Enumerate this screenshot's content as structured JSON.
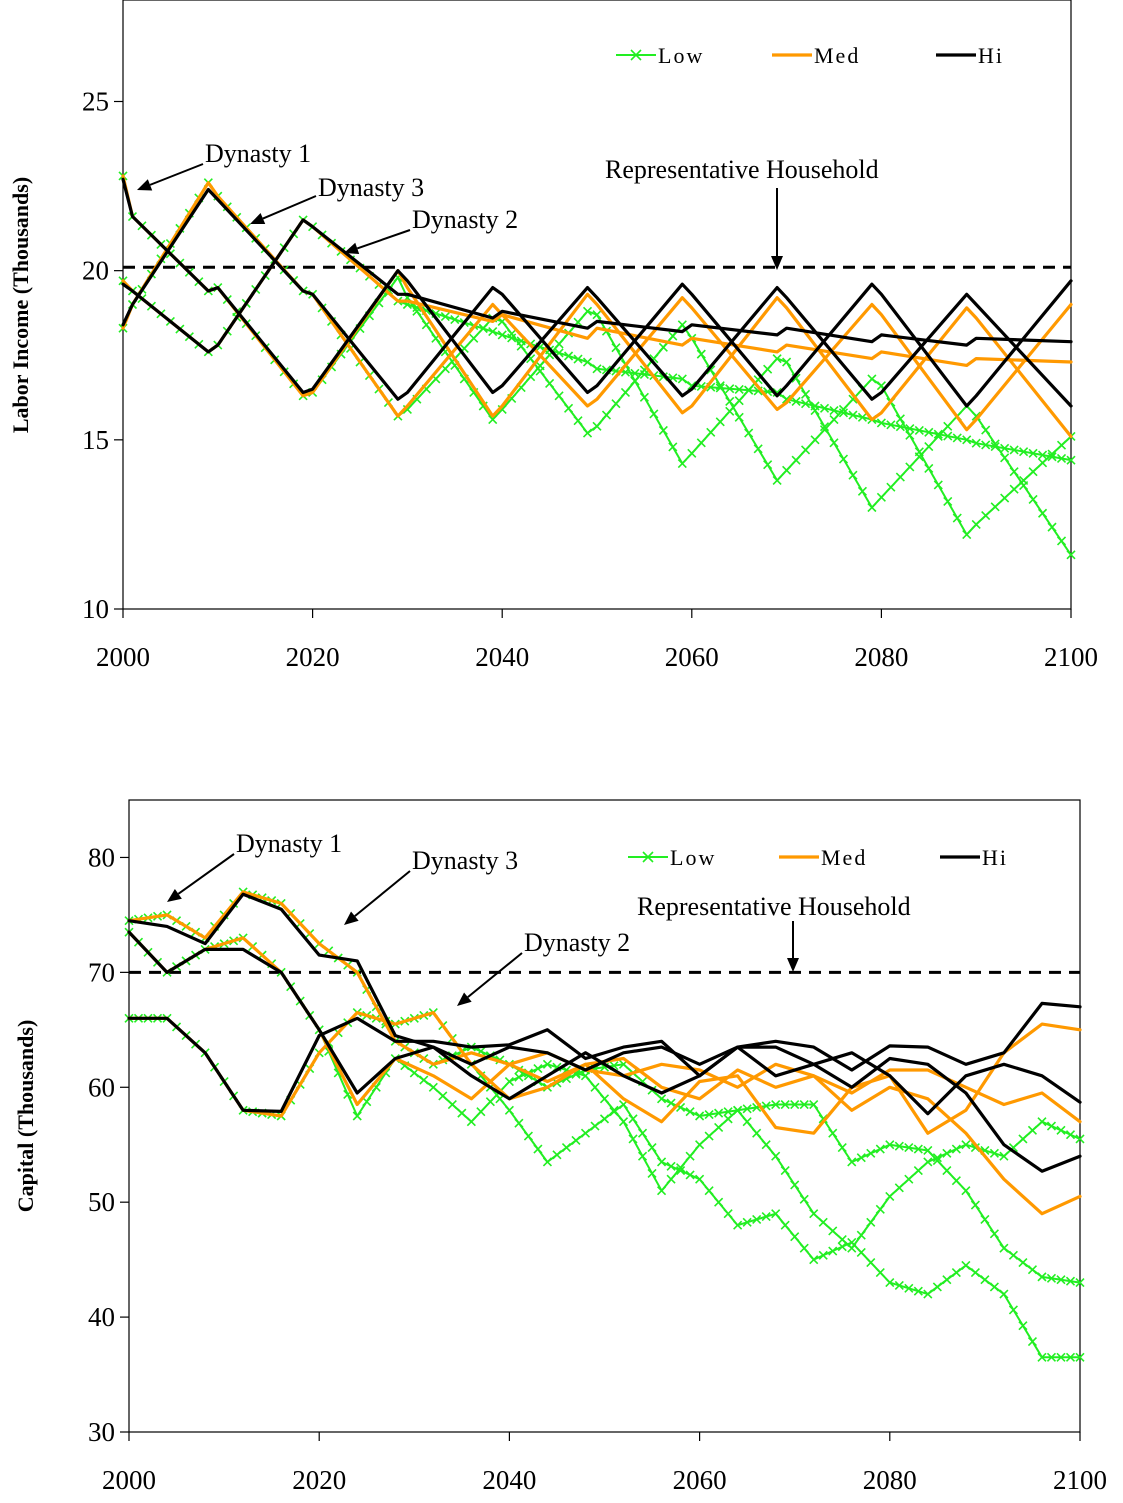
{
  "chart_data": [
    {
      "type": "line",
      "ylabel": "Labor Income (Thousands)",
      "xlabel": "",
      "xlim": [
        2000,
        2100
      ],
      "ylim": [
        10,
        28
      ],
      "xticks": [
        2000,
        2020,
        2040,
        2060,
        2080,
        2100
      ],
      "yticks": [
        10,
        15,
        20,
        25
      ],
      "legend": {
        "placement": "top-right",
        "entries": [
          "Low",
          "Med",
          "Hi"
        ]
      },
      "colors": {
        "Low": "#22ee22",
        "Med": "#ff9900",
        "Hi": "#000000",
        "reference": "#000000"
      },
      "reference_line": {
        "label": "Representative Household",
        "y": 20.1
      },
      "annotations": [
        {
          "text": "Dynasty 1",
          "x": 2002,
          "y": 22.5
        },
        {
          "text": "Dynasty 3",
          "x": 2013,
          "y": 21.2
        },
        {
          "text": "Dynasty 2",
          "x": 2023,
          "y": 20.5
        },
        {
          "text": "Representative Household",
          "x": 2069,
          "y": 20.2
        }
      ],
      "series": [
        {
          "name": "Low",
          "dynasty": 1,
          "x": [
            2000,
            2001,
            2009,
            2010,
            2019,
            2020,
            2029,
            2030,
            2039,
            2040,
            2049,
            2050,
            2059,
            2060,
            2069,
            2070,
            2079,
            2080,
            2089,
            2090,
            2100
          ],
          "values": [
            22.8,
            21.6,
            19.4,
            19.5,
            16.3,
            16.4,
            19.8,
            19.2,
            15.6,
            15.9,
            18.8,
            18.7,
            14.3,
            14.6,
            17.4,
            17.3,
            13.0,
            13.3,
            16.0,
            15.7,
            11.6
          ]
        },
        {
          "name": "Low",
          "dynasty": 2,
          "x": [
            2000,
            2001,
            2009,
            2010,
            2019,
            2020,
            2029,
            2030,
            2039,
            2040,
            2049,
            2050,
            2059,
            2060,
            2069,
            2070,
            2079,
            2080,
            2089,
            2090,
            2100
          ],
          "values": [
            18.3,
            19.0,
            22.6,
            22.2,
            19.4,
            19.3,
            15.7,
            15.9,
            18.6,
            18.5,
            15.2,
            15.4,
            18.4,
            18.0,
            13.8,
            14.1,
            16.8,
            16.6,
            12.2,
            12.5,
            15.1
          ]
        },
        {
          "name": "Low",
          "dynasty": 3,
          "x": [
            2000,
            2001,
            2009,
            2010,
            2019,
            2020,
            2029,
            2030,
            2039,
            2040,
            2049,
            2050,
            2059,
            2060,
            2069,
            2070,
            2079,
            2080,
            2089,
            2090,
            2100
          ],
          "values": [
            19.7,
            19.4,
            17.6,
            17.8,
            21.5,
            21.3,
            19.1,
            19.0,
            18.2,
            18.1,
            17.3,
            17.1,
            16.8,
            16.6,
            16.4,
            16.2,
            15.6,
            15.5,
            15.0,
            14.9,
            14.4
          ]
        },
        {
          "name": "Med",
          "dynasty": 1,
          "x": [
            2000,
            2001,
            2009,
            2010,
            2019,
            2020,
            2029,
            2030,
            2039,
            2040,
            2049,
            2050,
            2059,
            2060,
            2069,
            2070,
            2079,
            2080,
            2089,
            2090,
            2100
          ],
          "values": [
            22.8,
            21.6,
            19.4,
            19.5,
            16.3,
            16.4,
            20.0,
            19.5,
            15.7,
            16.0,
            19.3,
            19.0,
            15.8,
            16.0,
            19.2,
            18.9,
            15.6,
            15.8,
            18.9,
            18.6,
            15.1
          ]
        },
        {
          "name": "Med",
          "dynasty": 2,
          "x": [
            2000,
            2001,
            2009,
            2010,
            2019,
            2020,
            2029,
            2030,
            2039,
            2040,
            2049,
            2050,
            2059,
            2060,
            2069,
            2070,
            2079,
            2080,
            2089,
            2090,
            2100
          ],
          "values": [
            18.3,
            19.0,
            22.6,
            22.2,
            19.4,
            19.3,
            15.7,
            16.0,
            19.0,
            18.7,
            16.0,
            16.2,
            19.2,
            18.9,
            15.9,
            16.1,
            19.0,
            18.7,
            15.3,
            15.6,
            19.0
          ]
        },
        {
          "name": "Med",
          "dynasty": 3,
          "x": [
            2000,
            2001,
            2009,
            2010,
            2019,
            2020,
            2029,
            2030,
            2039,
            2040,
            2049,
            2050,
            2059,
            2060,
            2069,
            2070,
            2079,
            2080,
            2089,
            2090,
            2100
          ],
          "values": [
            19.7,
            19.4,
            17.6,
            17.8,
            21.5,
            21.3,
            19.1,
            19.1,
            18.5,
            18.7,
            18.0,
            18.3,
            17.8,
            18.0,
            17.6,
            17.8,
            17.4,
            17.6,
            17.2,
            17.4,
            17.3
          ]
        },
        {
          "name": "Hi",
          "dynasty": 1,
          "x": [
            2000,
            2001,
            2009,
            2010,
            2019,
            2020,
            2029,
            2030,
            2039,
            2040,
            2049,
            2050,
            2059,
            2060,
            2069,
            2070,
            2079,
            2080,
            2089,
            2090,
            2100
          ],
          "values": [
            22.7,
            21.6,
            19.4,
            19.5,
            16.4,
            16.5,
            20.0,
            19.7,
            16.4,
            16.6,
            19.5,
            19.2,
            16.3,
            16.5,
            19.5,
            19.2,
            16.2,
            16.4,
            19.3,
            19.0,
            16.0
          ]
        },
        {
          "name": "Hi",
          "dynasty": 2,
          "x": [
            2000,
            2001,
            2009,
            2010,
            2019,
            2020,
            2029,
            2030,
            2039,
            2040,
            2049,
            2050,
            2059,
            2060,
            2069,
            2070,
            2079,
            2080,
            2089,
            2090,
            2100
          ],
          "values": [
            18.4,
            19.0,
            22.4,
            22.1,
            19.4,
            19.3,
            16.2,
            16.4,
            19.5,
            19.3,
            16.4,
            16.6,
            19.6,
            19.3,
            16.3,
            16.6,
            19.6,
            19.3,
            16.0,
            16.3,
            19.7
          ]
        },
        {
          "name": "Hi",
          "dynasty": 3,
          "x": [
            2000,
            2001,
            2009,
            2010,
            2019,
            2020,
            2029,
            2030,
            2039,
            2040,
            2049,
            2050,
            2059,
            2060,
            2069,
            2070,
            2079,
            2080,
            2089,
            2090,
            2100
          ],
          "values": [
            19.6,
            19.4,
            17.6,
            17.8,
            21.5,
            21.3,
            19.3,
            19.3,
            18.6,
            18.8,
            18.3,
            18.5,
            18.2,
            18.4,
            18.1,
            18.3,
            17.9,
            18.1,
            17.8,
            18.0,
            17.9
          ]
        }
      ]
    },
    {
      "type": "line",
      "ylabel": "Capital (Thousands)",
      "xlabel": "",
      "xlim": [
        2000,
        2100
      ],
      "ylim": [
        30,
        85
      ],
      "xticks": [
        2000,
        2020,
        2040,
        2060,
        2080,
        2100
      ],
      "yticks": [
        30,
        40,
        50,
        60,
        70,
        80
      ],
      "legend": {
        "placement": "top-right",
        "entries": [
          "Low",
          "Med",
          "Hi"
        ]
      },
      "colors": {
        "Low": "#22ee22",
        "Med": "#ff9900",
        "Hi": "#000000",
        "reference": "#000000"
      },
      "reference_line": {
        "label": "Representative Household",
        "y": 70
      },
      "annotations": [
        {
          "text": "Dynasty 1",
          "x": 2004,
          "y": 75
        },
        {
          "text": "Dynasty 3",
          "x": 2023,
          "y": 73.5
        },
        {
          "text": "Dynasty 2",
          "x": 2035,
          "y": 67.5
        },
        {
          "text": "Representative Household",
          "x": 2070,
          "y": 70.2
        }
      ],
      "series": [
        {
          "name": "Low",
          "dynasty": 1,
          "x": [
            2000,
            2004,
            2008,
            2012,
            2016,
            2020,
            2024,
            2028,
            2032,
            2036,
            2040,
            2044,
            2048,
            2052,
            2056,
            2060,
            2064,
            2068,
            2072,
            2076,
            2080,
            2084,
            2088,
            2092,
            2096,
            2100
          ],
          "values": [
            74.5,
            75,
            73,
            77,
            76,
            72.5,
            70,
            64,
            62,
            63.5,
            62,
            60,
            61.5,
            62,
            59,
            57.5,
            58,
            58.5,
            58.5,
            53.5,
            55,
            54.5,
            51,
            46,
            43.5,
            43
          ]
        },
        {
          "name": "Low",
          "dynasty": 2,
          "x": [
            2000,
            2004,
            2008,
            2012,
            2016,
            2020,
            2024,
            2028,
            2032,
            2036,
            2040,
            2044,
            2048,
            2052,
            2056,
            2060,
            2064,
            2068,
            2072,
            2076,
            2080,
            2084,
            2088,
            2092,
            2096,
            2100
          ],
          "values": [
            66,
            66,
            63,
            58,
            57.5,
            63,
            66.5,
            65.5,
            66.5,
            62,
            58,
            53.5,
            56,
            58.5,
            53.5,
            52,
            48,
            49,
            45,
            46.5,
            43,
            42,
            44.5,
            42,
            36.5,
            36.5
          ]
        },
        {
          "name": "Low",
          "dynasty": 3,
          "x": [
            2000,
            2004,
            2008,
            2012,
            2016,
            2020,
            2024,
            2028,
            2032,
            2036,
            2040,
            2044,
            2048,
            2052,
            2056,
            2060,
            2064,
            2068,
            2072,
            2076,
            2080,
            2084,
            2088,
            2092,
            2096,
            2100
          ],
          "values": [
            73.5,
            70,
            72,
            73,
            70,
            65,
            57.5,
            62.5,
            60,
            57,
            60.5,
            62,
            61,
            57,
            51,
            55,
            58,
            54,
            49,
            46,
            50.5,
            53.5,
            55,
            54,
            57,
            55.5
          ]
        },
        {
          "name": "Med",
          "dynasty": 1,
          "x": [
            2000,
            2004,
            2008,
            2012,
            2016,
            2020,
            2024,
            2028,
            2032,
            2036,
            2040,
            2044,
            2048,
            2052,
            2056,
            2060,
            2064,
            2068,
            2072,
            2076,
            2080,
            2084,
            2088,
            2092,
            2096,
            2100
          ],
          "values": [
            74.5,
            75,
            73,
            77,
            76,
            72.5,
            70,
            64,
            62,
            63,
            62,
            60.5,
            62,
            62.5,
            60,
            59,
            61.5,
            60,
            61,
            58,
            60,
            59,
            56,
            52,
            49,
            50.5
          ]
        },
        {
          "name": "Med",
          "dynasty": 2,
          "x": [
            2000,
            2004,
            2008,
            2012,
            2016,
            2020,
            2024,
            2028,
            2032,
            2036,
            2040,
            2044,
            2048,
            2052,
            2056,
            2060,
            2064,
            2068,
            2072,
            2076,
            2080,
            2084,
            2088,
            2092,
            2096,
            2100
          ],
          "values": [
            66,
            66,
            63,
            58,
            57.5,
            63,
            66.5,
            65.5,
            66.5,
            62,
            59,
            60,
            62,
            59,
            57,
            60.5,
            61,
            56.5,
            56,
            60,
            61,
            56,
            58,
            63,
            65.5,
            65
          ]
        },
        {
          "name": "Med",
          "dynasty": 3,
          "x": [
            2000,
            2004,
            2008,
            2012,
            2016,
            2020,
            2024,
            2028,
            2032,
            2036,
            2040,
            2044,
            2048,
            2052,
            2056,
            2060,
            2064,
            2068,
            2072,
            2076,
            2080,
            2084,
            2088,
            2092,
            2096,
            2100
          ],
          "values": [
            73.5,
            70,
            72,
            73,
            70,
            65,
            58.5,
            62.5,
            61,
            59,
            62,
            63,
            61.5,
            61,
            62,
            61.5,
            60,
            62,
            61,
            59.5,
            61.5,
            61.5,
            60,
            58.5,
            59.5,
            57
          ]
        },
        {
          "name": "Hi",
          "dynasty": 1,
          "x": [
            2000,
            2004,
            2008,
            2012,
            2016,
            2020,
            2024,
            2028,
            2032,
            2036,
            2040,
            2044,
            2048,
            2052,
            2056,
            2060,
            2064,
            2068,
            2072,
            2076,
            2080,
            2084,
            2088,
            2092,
            2096,
            2100
          ],
          "values": [
            74.5,
            74,
            72.5,
            76.8,
            75.5,
            71.5,
            71,
            64.5,
            63.5,
            62,
            63.5,
            63,
            61.5,
            63,
            63.5,
            62,
            63.5,
            63.5,
            62,
            60,
            62.5,
            62,
            59.5,
            55,
            52.7,
            54
          ]
        },
        {
          "name": "Hi",
          "dynasty": 2,
          "x": [
            2000,
            2004,
            2008,
            2012,
            2016,
            2020,
            2024,
            2028,
            2032,
            2036,
            2040,
            2044,
            2048,
            2052,
            2056,
            2060,
            2064,
            2068,
            2072,
            2076,
            2080,
            2084,
            2088,
            2092,
            2096,
            2100
          ],
          "values": [
            66,
            66,
            63,
            58,
            57.9,
            64.5,
            66,
            64,
            64,
            63.5,
            63.7,
            65,
            62.5,
            63.5,
            64,
            61,
            63.5,
            64,
            63.5,
            61.5,
            63.6,
            63.5,
            62,
            63,
            67.3,
            67
          ]
        },
        {
          "name": "Hi",
          "dynasty": 3,
          "x": [
            2000,
            2004,
            2008,
            2012,
            2016,
            2020,
            2024,
            2028,
            2032,
            2036,
            2040,
            2044,
            2048,
            2052,
            2056,
            2060,
            2064,
            2068,
            2072,
            2076,
            2080,
            2084,
            2088,
            2092,
            2096,
            2100
          ],
          "values": [
            73.5,
            70,
            72,
            72,
            70,
            65,
            59.5,
            62.5,
            63.5,
            61,
            59,
            61,
            63,
            61,
            59.5,
            61,
            63.5,
            61,
            62,
            63,
            61,
            57.7,
            61,
            62,
            61,
            58.7
          ]
        }
      ]
    }
  ]
}
